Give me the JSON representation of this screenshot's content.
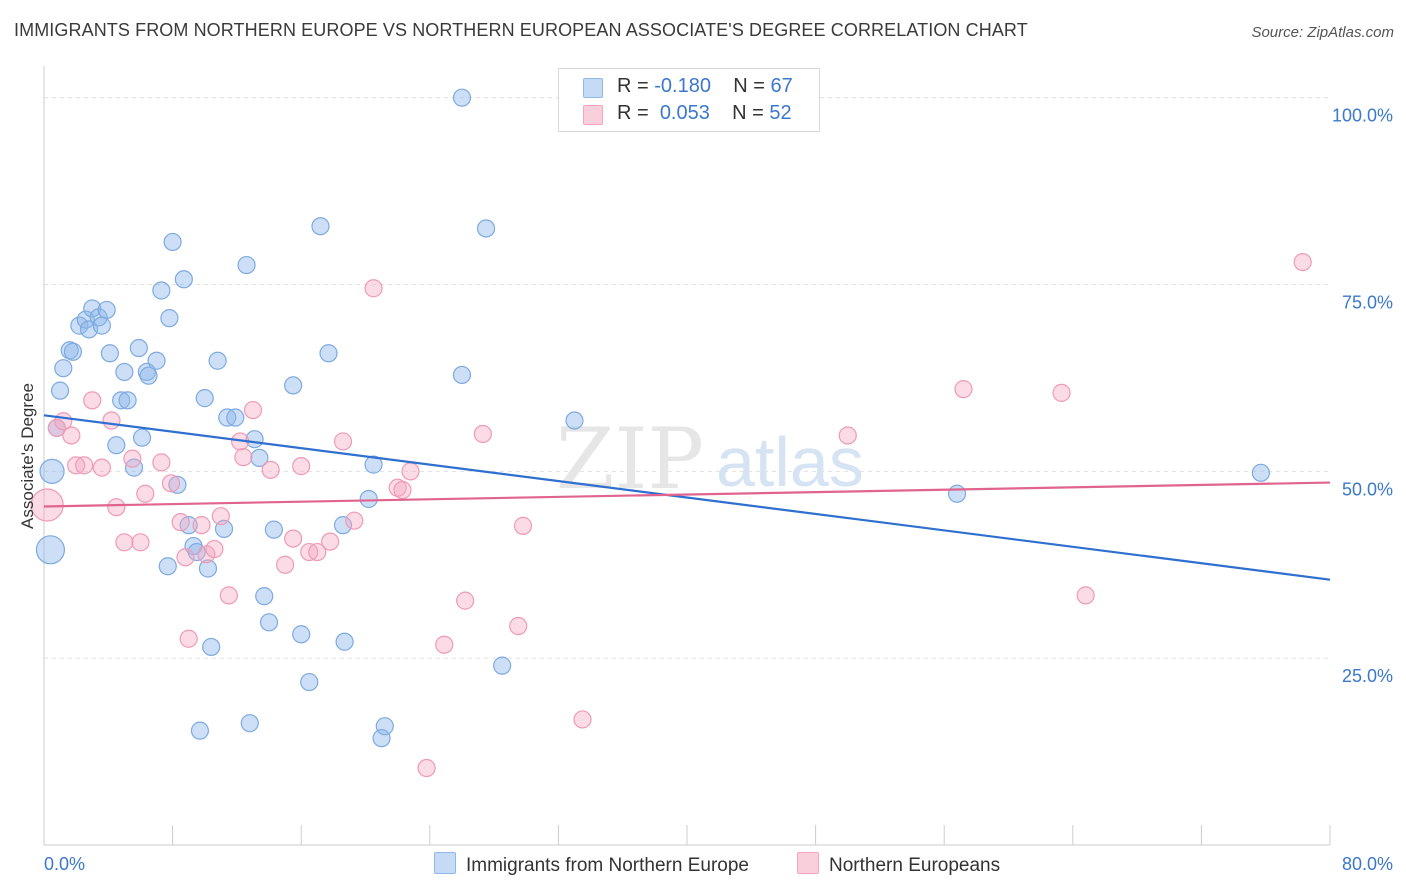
{
  "title": "IMMIGRANTS FROM NORTHERN EUROPE VS NORTHERN EUROPEAN ASSOCIATE'S DEGREE CORRELATION CHART",
  "source": "Source: ZipAtlas.com",
  "watermark": {
    "zip": "ZIP",
    "atlas": "atlas"
  },
  "legend": {
    "series1": {
      "r_label": "R =",
      "r_value": "-0.180",
      "n_label": "N =",
      "n_value": "67"
    },
    "series2": {
      "r_label": "R =",
      "r_value": "0.053",
      "n_label": "N =",
      "n_value": "52"
    }
  },
  "colors": {
    "blue": "#8fb8ea",
    "blue_line": "#2e6fcf",
    "pink": "#f4a6c0",
    "pink_line": "#e0648e",
    "tick_text": "#3b78cc"
  },
  "chart_data": {
    "type": "scatter",
    "title": "IMMIGRANTS FROM NORTHERN EUROPE VS NORTHERN EUROPEAN ASSOCIATE'S DEGREE CORRELATION CHART",
    "xlabel": "",
    "ylabel": "Associate's Degree",
    "xlim": [
      0,
      80
    ],
    "ylim": [
      0,
      102.5
    ],
    "x_tick_labels": [
      "0.0%",
      "80.0%"
    ],
    "y_ticks": [
      25,
      50,
      75,
      100
    ],
    "y_tick_labels": [
      "25.0%",
      "50.0%",
      "75.0%",
      "100.0%"
    ],
    "grid": true,
    "legend_position": "top-center",
    "series": [
      {
        "name": "Immigrants from Northern Europe",
        "color": "#8fb8ea",
        "trend": {
          "x": [
            0,
            80
          ],
          "y": [
            57.5,
            35.5
          ]
        },
        "points": [
          [
            0.5,
            50.0
          ],
          [
            0.4,
            39.5
          ],
          [
            1.0,
            60.8
          ],
          [
            1.2,
            63.8
          ],
          [
            1.6,
            66.2
          ],
          [
            1.8,
            66.0
          ],
          [
            2.2,
            69.5
          ],
          [
            2.6,
            70.3
          ],
          [
            2.8,
            69.0
          ],
          [
            3.0,
            71.8
          ],
          [
            3.4,
            70.6
          ],
          [
            3.6,
            69.5
          ],
          [
            3.9,
            71.6
          ],
          [
            4.1,
            65.8
          ],
          [
            4.5,
            53.5
          ],
          [
            4.8,
            59.5
          ],
          [
            5.0,
            63.3
          ],
          [
            5.2,
            59.5
          ],
          [
            5.6,
            50.5
          ],
          [
            5.9,
            66.5
          ],
          [
            6.1,
            54.5
          ],
          [
            6.4,
            63.3
          ],
          [
            6.5,
            62.8
          ],
          [
            7.0,
            64.8
          ],
          [
            7.3,
            74.2
          ],
          [
            7.7,
            37.3
          ],
          [
            7.8,
            70.5
          ],
          [
            8.0,
            80.7
          ],
          [
            8.3,
            48.2
          ],
          [
            8.7,
            75.7
          ],
          [
            9.0,
            42.8
          ],
          [
            9.3,
            40.0
          ],
          [
            9.5,
            39.2
          ],
          [
            9.7,
            15.3
          ],
          [
            10.0,
            59.8
          ],
          [
            10.2,
            37.0
          ],
          [
            10.4,
            26.5
          ],
          [
            10.8,
            64.8
          ],
          [
            11.2,
            42.3
          ],
          [
            11.4,
            57.2
          ],
          [
            11.9,
            57.2
          ],
          [
            12.6,
            77.6
          ],
          [
            12.8,
            16.3
          ],
          [
            13.1,
            54.3
          ],
          [
            13.4,
            51.8
          ],
          [
            13.7,
            33.3
          ],
          [
            14.0,
            29.8
          ],
          [
            14.3,
            42.2
          ],
          [
            15.5,
            61.5
          ],
          [
            16.0,
            28.2
          ],
          [
            16.5,
            21.8
          ],
          [
            17.2,
            82.8
          ],
          [
            17.7,
            65.8
          ],
          [
            18.6,
            42.8
          ],
          [
            18.7,
            27.2
          ],
          [
            20.2,
            46.3
          ],
          [
            20.5,
            50.9
          ],
          [
            21.0,
            14.3
          ],
          [
            21.2,
            15.9
          ],
          [
            26.0,
            100.0
          ],
          [
            26.0,
            62.9
          ],
          [
            27.5,
            82.5
          ],
          [
            28.5,
            24.0
          ],
          [
            33.0,
            56.8
          ],
          [
            56.8,
            47.0
          ],
          [
            75.7,
            49.8
          ],
          [
            0.8,
            55.8
          ]
        ]
      },
      {
        "name": "Northern Europeans",
        "color": "#f4a6c0",
        "trend": {
          "x": [
            0,
            80
          ],
          "y": [
            45.3,
            48.5
          ]
        },
        "points": [
          [
            0.2,
            45.5
          ],
          [
            0.8,
            55.8
          ],
          [
            1.2,
            56.7
          ],
          [
            1.7,
            54.8
          ],
          [
            2.0,
            50.8
          ],
          [
            2.5,
            50.8
          ],
          [
            3.0,
            59.5
          ],
          [
            3.6,
            50.5
          ],
          [
            4.2,
            56.8
          ],
          [
            4.5,
            45.2
          ],
          [
            5.0,
            40.5
          ],
          [
            5.5,
            51.7
          ],
          [
            6.0,
            40.5
          ],
          [
            6.3,
            47.0
          ],
          [
            7.3,
            51.2
          ],
          [
            7.9,
            48.4
          ],
          [
            8.5,
            43.2
          ],
          [
            8.8,
            38.5
          ],
          [
            9.0,
            27.6
          ],
          [
            9.8,
            42.8
          ],
          [
            10.1,
            38.9
          ],
          [
            10.6,
            39.6
          ],
          [
            11.0,
            44.0
          ],
          [
            11.5,
            33.4
          ],
          [
            12.2,
            54.0
          ],
          [
            12.4,
            51.9
          ],
          [
            13.0,
            58.2
          ],
          [
            14.1,
            50.2
          ],
          [
            15.0,
            37.5
          ],
          [
            15.5,
            41.0
          ],
          [
            16.0,
            50.7
          ],
          [
            16.5,
            39.2
          ],
          [
            17.0,
            39.2
          ],
          [
            17.8,
            40.6
          ],
          [
            18.6,
            54.0
          ],
          [
            19.3,
            43.4
          ],
          [
            20.5,
            74.5
          ],
          [
            22.0,
            47.8
          ],
          [
            22.3,
            47.5
          ],
          [
            22.8,
            50.0
          ],
          [
            23.8,
            10.3
          ],
          [
            24.9,
            26.8
          ],
          [
            26.2,
            32.7
          ],
          [
            27.3,
            55.0
          ],
          [
            29.5,
            29.3
          ],
          [
            29.8,
            42.7
          ],
          [
            33.5,
            16.8
          ],
          [
            57.2,
            61.0
          ],
          [
            50.0,
            54.8
          ],
          [
            64.8,
            33.4
          ],
          [
            78.3,
            78.0
          ],
          [
            63.3,
            60.5
          ]
        ]
      }
    ]
  },
  "axes": {
    "y_title": "Associate's Degree",
    "x_left": "0.0%",
    "x_right": "80.0%"
  },
  "bottom_legend": {
    "series1": "Immigrants from Northern Europe",
    "series2": "Northern Europeans"
  }
}
